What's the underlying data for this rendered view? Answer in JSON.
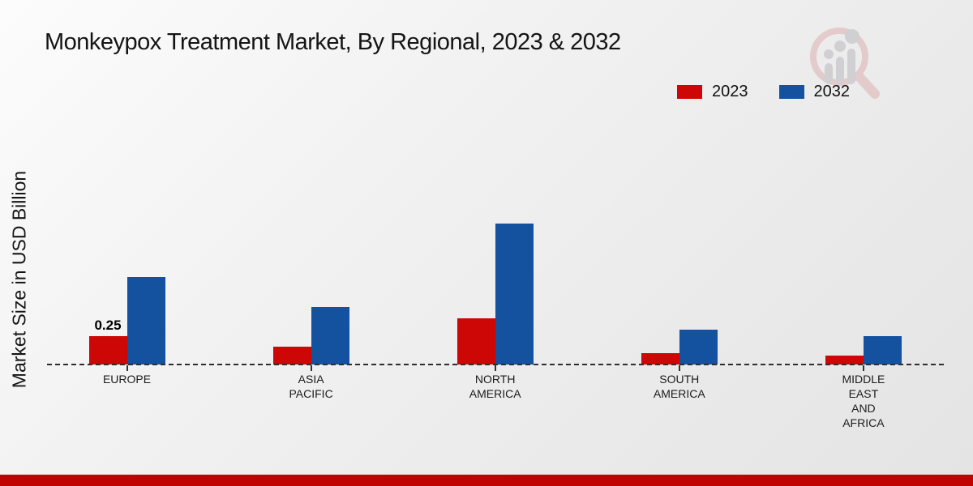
{
  "title": "Monkeypox Treatment Market, By Regional, 2023 & 2032",
  "y_axis_label": "Market Size in USD Billion",
  "legend": [
    {
      "label": "2023",
      "color": "#cc0705"
    },
    {
      "label": "2032",
      "color": "#14519e"
    }
  ],
  "colors": {
    "series_2023": "#cc0705",
    "series_2032": "#14519e",
    "footer": "#c00201",
    "baseline": "#2e2e2e"
  },
  "watermark": {
    "name": "market-research-future-logo"
  },
  "chart_data": {
    "type": "bar",
    "categories": [
      "EUROPE",
      "ASIA PACIFIC",
      "NORTH AMERICA",
      "SOUTH AMERICA",
      "MIDDLE EAST AND AFRICA"
    ],
    "category_labels": [
      "EUROPE",
      "ASIA\nPACIFIC",
      "NORTH\nAMERICA",
      "SOUTH\nAMERICA",
      "MIDDLE\nEAST\nAND\nAFRICA"
    ],
    "series": [
      {
        "name": "2023",
        "color": "#cc0705",
        "values": [
          0.25,
          0.16,
          0.41,
          0.1,
          0.08
        ]
      },
      {
        "name": "2032",
        "color": "#14519e",
        "values": [
          0.77,
          0.51,
          1.24,
          0.31,
          0.25
        ]
      }
    ],
    "bar_labels": [
      {
        "category_index": 0,
        "series_index": 0,
        "text": "0.25"
      }
    ],
    "title": "Monkeypox Treatment Market, By Regional, 2023 & 2032",
    "xlabel": "",
    "ylabel": "Market Size in USD Billion",
    "ylim": [
      0,
      1.4
    ],
    "grid": false,
    "baseline_style": "dashed",
    "legend_position": "top-right"
  }
}
